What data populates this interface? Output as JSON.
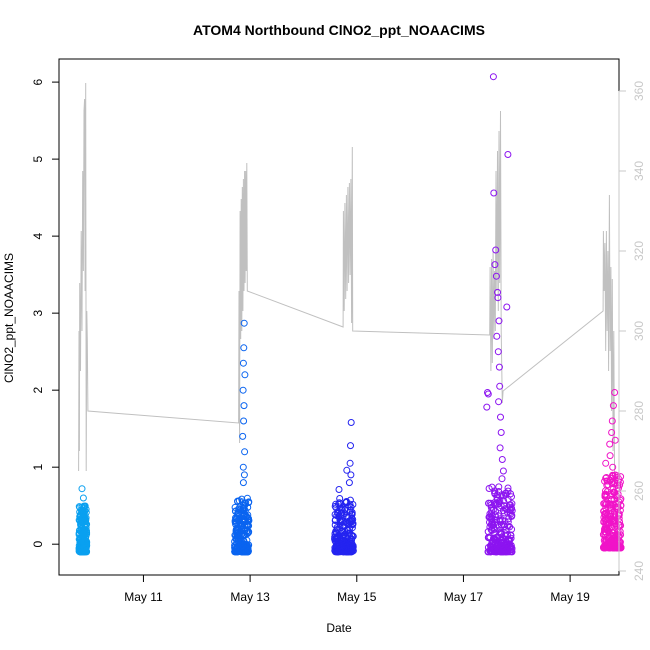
{
  "chart_data": {
    "type": "scatter",
    "title": "ATOM4 Northbound ClNO2_ppt_NOAACIMS",
    "xlabel": "Date",
    "ylabel": "ClNO2_ppt_NOAACIMS",
    "x_ticks": [
      "May 11",
      "May 13",
      "May 15",
      "May 17",
      "May 19"
    ],
    "y_ticks": [
      "0",
      "1",
      "2",
      "3",
      "4",
      "5",
      "6"
    ],
    "ylim": [
      -0.4,
      6.3
    ],
    "xlim": [
      "2018-05-09T10:00",
      "2018-05-19T22:00"
    ],
    "y2_ticks": [
      "240",
      "260",
      "280",
      "300",
      "320",
      "340",
      "360"
    ],
    "y2lim": [
      239,
      368
    ],
    "grid": false,
    "marker": "open-circle",
    "series": [
      {
        "color": "#0aa0f0",
        "x_range": [
          "2018-05-09T19:00",
          "2018-05-09T22:30"
        ],
        "y_base": [
          -0.1,
          0.5
        ],
        "outliers": [
          {
            "x": "2018-05-09T20:20",
            "y": 0.72
          },
          {
            "x": "2018-05-09T21:00",
            "y": 0.6
          }
        ]
      },
      {
        "color": "#0a64f0",
        "x_range": [
          "2018-05-12T17:00",
          "2018-05-12T23:30"
        ],
        "y_base": [
          -0.1,
          0.6
        ],
        "outliers": [
          {
            "x": "2018-05-12T21:20",
            "y": 2.87
          },
          {
            "x": "2018-05-12T21:10",
            "y": 2.55
          },
          {
            "x": "2018-05-12T21:00",
            "y": 2.35
          },
          {
            "x": "2018-05-12T21:40",
            "y": 2.2
          },
          {
            "x": "2018-05-12T20:50",
            "y": 2.0
          },
          {
            "x": "2018-05-12T21:15",
            "y": 1.8
          },
          {
            "x": "2018-05-12T21:05",
            "y": 1.6
          },
          {
            "x": "2018-05-12T20:40",
            "y": 1.4
          },
          {
            "x": "2018-05-12T21:30",
            "y": 1.2
          },
          {
            "x": "2018-05-12T20:55",
            "y": 1.0
          },
          {
            "x": "2018-05-12T21:25",
            "y": 0.9
          },
          {
            "x": "2018-05-12T21:00",
            "y": 0.8
          }
        ]
      },
      {
        "color": "#2424f0",
        "x_range": [
          "2018-05-14T14:00",
          "2018-05-14T22:30"
        ],
        "y_base": [
          -0.1,
          0.6
        ],
        "outliers": [
          {
            "x": "2018-05-14T21:30",
            "y": 1.58
          },
          {
            "x": "2018-05-14T21:10",
            "y": 1.28
          },
          {
            "x": "2018-05-14T19:30",
            "y": 0.96
          },
          {
            "x": "2018-05-14T21:00",
            "y": 1.05
          },
          {
            "x": "2018-05-14T16:00",
            "y": 0.71
          },
          {
            "x": "2018-05-14T21:20",
            "y": 0.9
          },
          {
            "x": "2018-05-14T20:40",
            "y": 0.8
          }
        ]
      },
      {
        "color": "#8c14f0",
        "x_range": [
          "2018-05-17T11:00",
          "2018-05-17T22:00"
        ],
        "y_base": [
          -0.1,
          0.75
        ],
        "outliers": [
          {
            "x": "2018-05-17T13:30",
            "y": 6.07
          },
          {
            "x": "2018-05-17T20:00",
            "y": 5.06
          },
          {
            "x": "2018-05-17T13:40",
            "y": 4.56
          },
          {
            "x": "2018-05-17T14:30",
            "y": 3.82
          },
          {
            "x": "2018-05-17T14:10",
            "y": 3.63
          },
          {
            "x": "2018-05-17T14:50",
            "y": 3.48
          },
          {
            "x": "2018-05-17T15:20",
            "y": 3.27
          },
          {
            "x": "2018-05-17T15:30",
            "y": 3.2
          },
          {
            "x": "2018-05-17T19:30",
            "y": 3.08
          },
          {
            "x": "2018-05-17T16:00",
            "y": 2.9
          },
          {
            "x": "2018-05-17T15:00",
            "y": 2.7
          },
          {
            "x": "2018-05-17T15:40",
            "y": 2.5
          },
          {
            "x": "2018-05-17T16:10",
            "y": 2.3
          },
          {
            "x": "2018-05-17T10:50",
            "y": 1.97
          },
          {
            "x": "2018-05-17T11:10",
            "y": 1.95
          },
          {
            "x": "2018-05-17T10:30",
            "y": 1.78
          },
          {
            "x": "2018-05-17T16:20",
            "y": 2.05
          },
          {
            "x": "2018-05-17T15:50",
            "y": 1.85
          },
          {
            "x": "2018-05-17T16:40",
            "y": 1.65
          },
          {
            "x": "2018-05-17T17:00",
            "y": 1.45
          },
          {
            "x": "2018-05-17T16:30",
            "y": 1.25
          },
          {
            "x": "2018-05-17T17:30",
            "y": 1.1
          },
          {
            "x": "2018-05-17T18:00",
            "y": 0.95
          },
          {
            "x": "2018-05-17T17:20",
            "y": 0.85
          }
        ]
      },
      {
        "color": "#f014c8",
        "x_range": [
          "2018-05-19T15:00",
          "2018-05-19T23:00"
        ],
        "y_base": [
          -0.05,
          0.9
        ],
        "outliers": [
          {
            "x": "2018-05-19T20:00",
            "y": 1.97
          },
          {
            "x": "2018-05-19T19:30",
            "y": 1.8
          },
          {
            "x": "2018-05-19T19:00",
            "y": 1.6
          },
          {
            "x": "2018-05-19T18:40",
            "y": 1.45
          },
          {
            "x": "2018-05-19T17:50",
            "y": 1.3
          },
          {
            "x": "2018-05-19T18:00",
            "y": 1.15
          },
          {
            "x": "2018-05-19T16:00",
            "y": 1.05
          },
          {
            "x": "2018-05-19T20:20",
            "y": 1.35
          },
          {
            "x": "2018-05-19T19:10",
            "y": 1.0
          }
        ]
      }
    ],
    "secondary_line": {
      "color": "#c0c0c0",
      "points": [
        [
          "2018-05-09T18:50",
          265
        ],
        [
          "2018-05-09T19:00",
          300
        ],
        [
          "2018-05-09T19:10",
          270
        ],
        [
          "2018-05-09T19:20",
          312
        ],
        [
          "2018-05-09T19:40",
          290
        ],
        [
          "2018-05-09T20:00",
          325
        ],
        [
          "2018-05-09T20:20",
          300
        ],
        [
          "2018-05-09T20:40",
          340
        ],
        [
          "2018-05-09T21:00",
          315
        ],
        [
          "2018-05-09T21:15",
          355
        ],
        [
          "2018-05-09T21:30",
          358
        ],
        [
          "2018-05-09T21:45",
          310
        ],
        [
          "2018-05-09T22:00",
          362
        ],
        [
          "2018-05-09T22:15",
          265
        ],
        [
          "2018-05-09T22:30",
          305
        ],
        [
          "2018-05-09T22:45",
          298
        ],
        [
          "2018-05-09T23:00",
          280
        ],
        [
          "2018-05-12T18:50",
          277
        ],
        [
          "2018-05-12T19:00",
          310
        ],
        [
          "2018-05-12T19:15",
          272
        ],
        [
          "2018-05-12T19:30",
          330
        ],
        [
          "2018-05-12T19:45",
          298
        ],
        [
          "2018-05-12T20:00",
          333
        ],
        [
          "2018-05-12T20:15",
          300
        ],
        [
          "2018-05-12T20:30",
          336
        ],
        [
          "2018-05-12T20:45",
          305
        ],
        [
          "2018-05-12T21:00",
          338
        ],
        [
          "2018-05-12T21:15",
          310
        ],
        [
          "2018-05-12T21:30",
          340
        ],
        [
          "2018-05-12T21:45",
          312
        ],
        [
          "2018-05-12T22:00",
          340
        ],
        [
          "2018-05-12T22:15",
          315
        ],
        [
          "2018-05-12T22:30",
          342
        ],
        [
          "2018-05-12T22:45",
          310
        ],
        [
          "2018-05-14T17:50",
          301
        ],
        [
          "2018-05-14T18:00",
          330
        ],
        [
          "2018-05-14T18:20",
          305
        ],
        [
          "2018-05-14T18:40",
          332
        ],
        [
          "2018-05-14T19:00",
          308
        ],
        [
          "2018-05-14T19:20",
          334
        ],
        [
          "2018-05-14T19:40",
          310
        ],
        [
          "2018-05-14T20:00",
          336
        ],
        [
          "2018-05-14T20:20",
          312
        ],
        [
          "2018-05-14T20:40",
          337
        ],
        [
          "2018-05-14T21:00",
          314
        ],
        [
          "2018-05-14T21:20",
          338
        ],
        [
          "2018-05-14T21:40",
          302
        ],
        [
          "2018-05-14T22:00",
          346
        ],
        [
          "2018-05-14T22:10",
          300
        ],
        [
          "2018-05-17T11:50",
          299
        ],
        [
          "2018-05-17T12:00",
          316
        ],
        [
          "2018-05-17T12:20",
          290
        ],
        [
          "2018-05-17T12:40",
          318
        ],
        [
          "2018-05-17T13:00",
          292
        ],
        [
          "2018-05-17T13:20",
          320
        ],
        [
          "2018-05-17T13:40",
          298
        ],
        [
          "2018-05-17T14:00",
          315
        ],
        [
          "2018-05-17T14:20",
          300
        ],
        [
          "2018-05-17T14:40",
          340
        ],
        [
          "2018-05-17T15:00",
          310
        ],
        [
          "2018-05-17T15:20",
          345
        ],
        [
          "2018-05-17T15:40",
          305
        ],
        [
          "2018-05-17T16:00",
          350
        ],
        [
          "2018-05-17T16:20",
          312
        ],
        [
          "2018-05-17T16:40",
          355
        ],
        [
          "2018-05-17T17:00",
          300
        ],
        [
          "2018-05-17T17:30",
          282
        ],
        [
          "2018-05-17T17:50",
          285
        ],
        [
          "2018-05-19T14:50",
          305
        ],
        [
          "2018-05-19T15:00",
          325
        ],
        [
          "2018-05-19T15:20",
          310
        ],
        [
          "2018-05-19T15:40",
          322
        ],
        [
          "2018-05-19T16:00",
          295
        ],
        [
          "2018-05-19T16:20",
          325
        ],
        [
          "2018-05-19T16:40",
          300
        ],
        [
          "2018-05-19T17:00",
          320
        ],
        [
          "2018-05-19T17:20",
          290
        ],
        [
          "2018-05-19T17:40",
          334
        ],
        [
          "2018-05-19T18:00",
          295
        ],
        [
          "2018-05-19T18:20",
          316
        ],
        [
          "2018-05-19T18:40",
          280
        ],
        [
          "2018-05-19T19:00",
          313
        ],
        [
          "2018-05-19T19:20",
          270
        ],
        [
          "2018-05-19T19:40",
          300
        ],
        [
          "2018-05-19T20:00",
          262
        ]
      ]
    }
  }
}
